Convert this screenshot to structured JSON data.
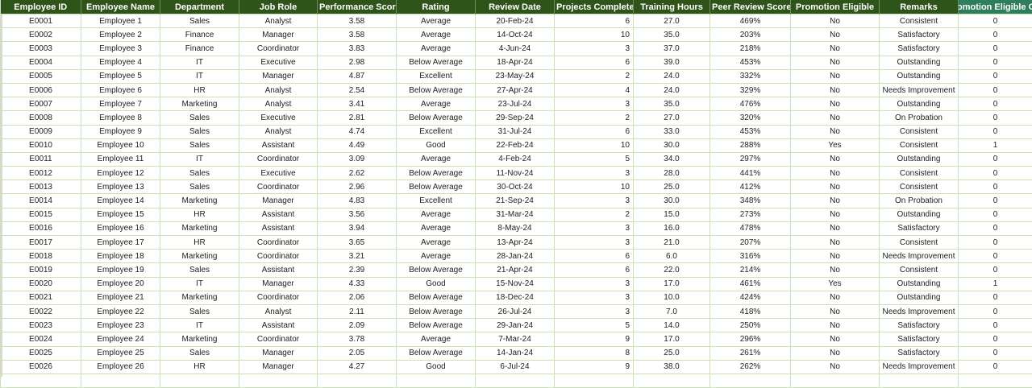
{
  "columns": [
    "Employee ID",
    "Employee Name",
    "Department",
    "Job Role",
    "Performance Score",
    "Rating",
    "Review Date",
    "Projects Completed",
    "Training Hours",
    "Peer Review Score",
    "Promotion Eligible",
    "Remarks",
    "omotion Eligible Co"
  ],
  "colors": {
    "header_bg": "#2f5419",
    "last_header_bg": "#2e7d5b",
    "grid": "#c9e2b8"
  },
  "rows": [
    [
      "E0001",
      "Employee 1",
      "Sales",
      "Analyst",
      "3.58",
      "Average",
      "20-Feb-24",
      "6",
      "27.0",
      "469%",
      "No",
      "Consistent",
      "0"
    ],
    [
      "E0002",
      "Employee 2",
      "Finance",
      "Manager",
      "3.58",
      "Average",
      "14-Oct-24",
      "10",
      "35.0",
      "203%",
      "No",
      "Satisfactory",
      "0"
    ],
    [
      "E0003",
      "Employee 3",
      "Finance",
      "Coordinator",
      "3.83",
      "Average",
      "4-Jun-24",
      "3",
      "37.0",
      "218%",
      "No",
      "Satisfactory",
      "0"
    ],
    [
      "E0004",
      "Employee 4",
      "IT",
      "Executive",
      "2.98",
      "Below Average",
      "18-Apr-24",
      "6",
      "39.0",
      "453%",
      "No",
      "Outstanding",
      "0"
    ],
    [
      "E0005",
      "Employee 5",
      "IT",
      "Manager",
      "4.87",
      "Excellent",
      "23-May-24",
      "2",
      "24.0",
      "332%",
      "No",
      "Outstanding",
      "0"
    ],
    [
      "E0006",
      "Employee 6",
      "HR",
      "Analyst",
      "2.54",
      "Below Average",
      "27-Apr-24",
      "4",
      "24.0",
      "329%",
      "No",
      "Needs Improvement",
      "0"
    ],
    [
      "E0007",
      "Employee 7",
      "Marketing",
      "Analyst",
      "3.41",
      "Average",
      "23-Jul-24",
      "3",
      "35.0",
      "476%",
      "No",
      "Outstanding",
      "0"
    ],
    [
      "E0008",
      "Employee 8",
      "Sales",
      "Executive",
      "2.81",
      "Below Average",
      "29-Sep-24",
      "2",
      "27.0",
      "320%",
      "No",
      "On Probation",
      "0"
    ],
    [
      "E0009",
      "Employee 9",
      "Sales",
      "Analyst",
      "4.74",
      "Excellent",
      "31-Jul-24",
      "6",
      "33.0",
      "453%",
      "No",
      "Consistent",
      "0"
    ],
    [
      "E0010",
      "Employee 10",
      "Sales",
      "Assistant",
      "4.49",
      "Good",
      "22-Feb-24",
      "10",
      "30.0",
      "288%",
      "Yes",
      "Consistent",
      "1"
    ],
    [
      "E0011",
      "Employee 11",
      "IT",
      "Coordinator",
      "3.09",
      "Average",
      "4-Feb-24",
      "5",
      "34.0",
      "297%",
      "No",
      "Outstanding",
      "0"
    ],
    [
      "E0012",
      "Employee 12",
      "Sales",
      "Executive",
      "2.62",
      "Below Average",
      "11-Nov-24",
      "3",
      "28.0",
      "441%",
      "No",
      "Consistent",
      "0"
    ],
    [
      "E0013",
      "Employee 13",
      "Sales",
      "Coordinator",
      "2.96",
      "Below Average",
      "30-Oct-24",
      "10",
      "25.0",
      "412%",
      "No",
      "Consistent",
      "0"
    ],
    [
      "E0014",
      "Employee 14",
      "Marketing",
      "Manager",
      "4.83",
      "Excellent",
      "21-Sep-24",
      "3",
      "30.0",
      "348%",
      "No",
      "On Probation",
      "0"
    ],
    [
      "E0015",
      "Employee 15",
      "HR",
      "Assistant",
      "3.56",
      "Average",
      "31-Mar-24",
      "2",
      "15.0",
      "273%",
      "No",
      "Outstanding",
      "0"
    ],
    [
      "E0016",
      "Employee 16",
      "Marketing",
      "Assistant",
      "3.94",
      "Average",
      "8-May-24",
      "3",
      "16.0",
      "478%",
      "No",
      "Satisfactory",
      "0"
    ],
    [
      "E0017",
      "Employee 17",
      "HR",
      "Coordinator",
      "3.65",
      "Average",
      "13-Apr-24",
      "3",
      "21.0",
      "207%",
      "No",
      "Consistent",
      "0"
    ],
    [
      "E0018",
      "Employee 18",
      "Marketing",
      "Coordinator",
      "3.21",
      "Average",
      "28-Jan-24",
      "6",
      "6.0",
      "316%",
      "No",
      "Needs Improvement",
      "0"
    ],
    [
      "E0019",
      "Employee 19",
      "Sales",
      "Assistant",
      "2.39",
      "Below Average",
      "21-Apr-24",
      "6",
      "22.0",
      "214%",
      "No",
      "Consistent",
      "0"
    ],
    [
      "E0020",
      "Employee 20",
      "IT",
      "Manager",
      "4.33",
      "Good",
      "15-Nov-24",
      "3",
      "17.0",
      "461%",
      "Yes",
      "Outstanding",
      "1"
    ],
    [
      "E0021",
      "Employee 21",
      "Marketing",
      "Coordinator",
      "2.06",
      "Below Average",
      "18-Dec-24",
      "3",
      "10.0",
      "424%",
      "No",
      "Outstanding",
      "0"
    ],
    [
      "E0022",
      "Employee 22",
      "Sales",
      "Analyst",
      "2.11",
      "Below Average",
      "26-Jul-24",
      "3",
      "7.0",
      "418%",
      "No",
      "Needs Improvement",
      "0"
    ],
    [
      "E0023",
      "Employee 23",
      "IT",
      "Assistant",
      "2.09",
      "Below Average",
      "29-Jan-24",
      "5",
      "14.0",
      "250%",
      "No",
      "Satisfactory",
      "0"
    ],
    [
      "E0024",
      "Employee 24",
      "Marketing",
      "Coordinator",
      "3.78",
      "Average",
      "7-Mar-24",
      "9",
      "17.0",
      "296%",
      "No",
      "Satisfactory",
      "0"
    ],
    [
      "E0025",
      "Employee 25",
      "Sales",
      "Manager",
      "2.05",
      "Below Average",
      "14-Jan-24",
      "8",
      "25.0",
      "261%",
      "No",
      "Satisfactory",
      "0"
    ],
    [
      "E0026",
      "Employee 26",
      "HR",
      "Manager",
      "4.27",
      "Good",
      "6-Jul-24",
      "9",
      "38.0",
      "262%",
      "No",
      "Needs Improvement",
      "0"
    ]
  ]
}
